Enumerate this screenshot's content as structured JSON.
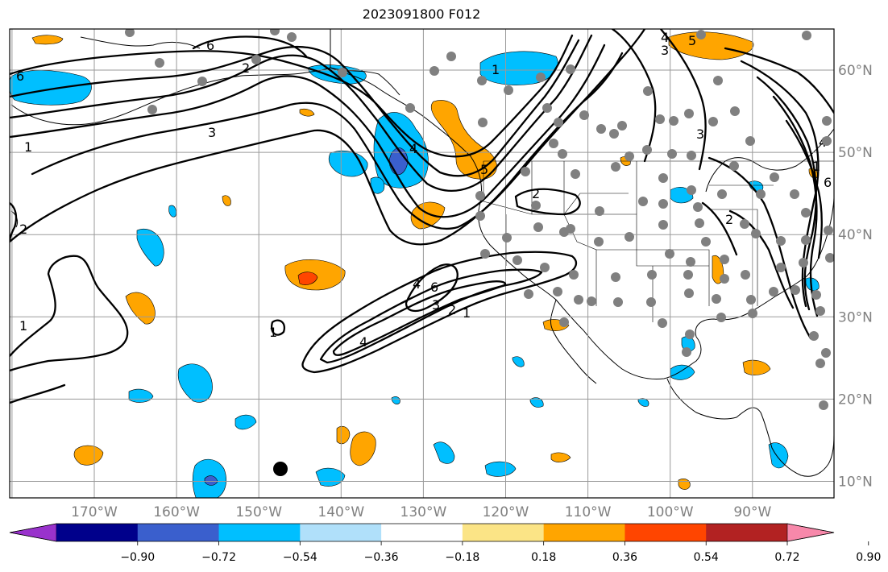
{
  "title": "2023091800 F012",
  "lon_labels": [
    {
      "lon": -170,
      "text": "170°W"
    },
    {
      "lon": -160,
      "text": "160°W"
    },
    {
      "lon": -150,
      "text": "150°W"
    },
    {
      "lon": -140,
      "text": "140°W"
    },
    {
      "lon": -130,
      "text": "130°W"
    },
    {
      "lon": -120,
      "text": "120°W"
    },
    {
      "lon": -110,
      "text": "110°W"
    },
    {
      "lon": -100,
      "text": "100°W"
    },
    {
      "lon": -90,
      "text": "90°W"
    }
  ],
  "lat_labels": [
    {
      "lat": 60,
      "text": "60°N"
    },
    {
      "lat": 50,
      "text": "50°N"
    },
    {
      "lat": 40,
      "text": "40°N"
    },
    {
      "lat": 30,
      "text": "30°N"
    },
    {
      "lat": 20,
      "text": "20°N"
    },
    {
      "lat": 10,
      "text": "10°N"
    }
  ],
  "colorbar": {
    "colors": [
      "#9932cc",
      "#00008b",
      "#3a5fcd",
      "#00bfff",
      "#b0e0fa",
      "#ffffff",
      "#fbe486",
      "#ffa500",
      "#ff4500",
      "#b22222",
      "#f788aa"
    ],
    "ticks": [
      "−0.90",
      "−0.72",
      "−0.54",
      "−0.36",
      "−0.18",
      "0.18",
      "0.36",
      "0.54",
      "0.72",
      "0.90"
    ]
  },
  "contour_labels": [
    "6",
    "6",
    "5",
    "4",
    "3",
    "3",
    "2",
    "2",
    "1",
    "1",
    "1",
    "6",
    "5",
    "4",
    "4",
    "3",
    "2",
    "1",
    "4",
    "6",
    "1",
    "2",
    "3",
    "4",
    "1",
    "2"
  ],
  "colors": {
    "grid": "#9a9a9a",
    "station": "#808080",
    "positive": "#ffa500",
    "negative": "#00bfff"
  }
}
